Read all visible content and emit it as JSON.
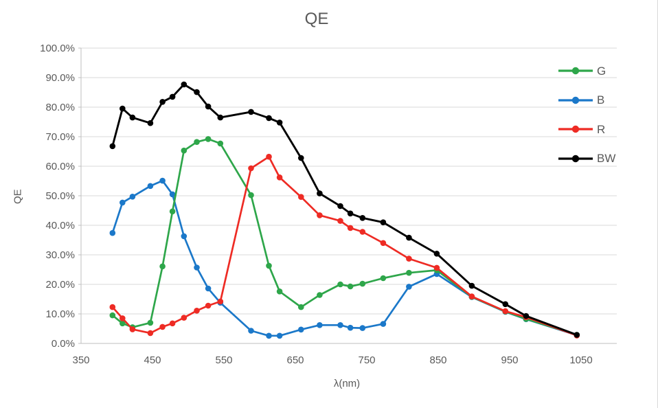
{
  "title": "QE",
  "axes": {
    "x_label": "λ(nm)",
    "y_label": "QE",
    "x_ticks": [
      "350",
      "450",
      "550",
      "650",
      "750",
      "850",
      "950",
      "1050"
    ],
    "y_ticks": [
      "0.0%",
      "10.0%",
      "20.0%",
      "30.0%",
      "40.0%",
      "50.0%",
      "60.0%",
      "70.0%",
      "80.0%",
      "90.0%",
      "100.0%"
    ]
  },
  "legend": {
    "position": "right",
    "items": [
      {
        "label": "G",
        "color": "#2ea64a"
      },
      {
        "label": "B",
        "color": "#1b78c9"
      },
      {
        "label": "R",
        "color": "#ee2b24"
      },
      {
        "label": "BW",
        "color": "#000000"
      }
    ]
  },
  "styles": {
    "grid_color": "#d9d9d9",
    "axis_color": "#bfbfbf",
    "text_color": "#595959",
    "background": "#ffffff"
  },
  "chart_data": {
    "type": "line",
    "title": "QE",
    "xlabel": "λ(nm)",
    "ylabel": "QE",
    "xlim": [
      350,
      1100
    ],
    "ylim": [
      0,
      100
    ],
    "x_tick_step": 100,
    "y_tick_step": 10,
    "y_tick_format": "percent_1dp",
    "grid": "horizontal",
    "legend_position": "right",
    "marker": "circle",
    "x": [
      394,
      408,
      422,
      447,
      464,
      478,
      494,
      512,
      528,
      545,
      588,
      613,
      628,
      658,
      684,
      713,
      727,
      744,
      773,
      809,
      848,
      897,
      944,
      973,
      1044
    ],
    "series": [
      {
        "name": "G",
        "color": "#2ea64a",
        "values": [
          9.5,
          6.8,
          5.5,
          7.0,
          26.1,
          44.7,
          65.3,
          68.2,
          69.2,
          67.7,
          50.2,
          26.3,
          17.6,
          12.3,
          16.4,
          20.0,
          19.3,
          20.2,
          22.1,
          23.9,
          24.8,
          15.8,
          10.8,
          8.3,
          2.9
        ]
      },
      {
        "name": "B",
        "color": "#1b78c9",
        "values": [
          37.4,
          47.7,
          49.7,
          53.3,
          55.1,
          50.5,
          36.3,
          25.7,
          18.6,
          13.8,
          4.3,
          2.6,
          2.6,
          4.7,
          6.2,
          6.2,
          5.3,
          5.2,
          6.6,
          19.2,
          23.5,
          15.7,
          10.7,
          8.2,
          2.8
        ]
      },
      {
        "name": "R",
        "color": "#ee2b24",
        "values": [
          12.3,
          8.5,
          4.8,
          3.5,
          5.6,
          6.8,
          8.7,
          11.1,
          12.8,
          14.2,
          59.3,
          63.2,
          56.2,
          49.6,
          43.4,
          41.5,
          39.1,
          37.8,
          34.0,
          28.7,
          25.6,
          15.9,
          10.9,
          8.9,
          2.7
        ]
      },
      {
        "name": "BW",
        "color": "#000000",
        "values": [
          66.8,
          79.5,
          76.5,
          74.6,
          81.8,
          83.5,
          87.7,
          85.1,
          80.2,
          76.5,
          78.4,
          76.3,
          74.8,
          62.8,
          50.8,
          46.5,
          44.0,
          42.5,
          41.0,
          35.8,
          30.4,
          19.5,
          13.3,
          9.3,
          2.9
        ]
      }
    ],
    "draw_order": [
      "B",
      "G",
      "R",
      "BW"
    ]
  }
}
